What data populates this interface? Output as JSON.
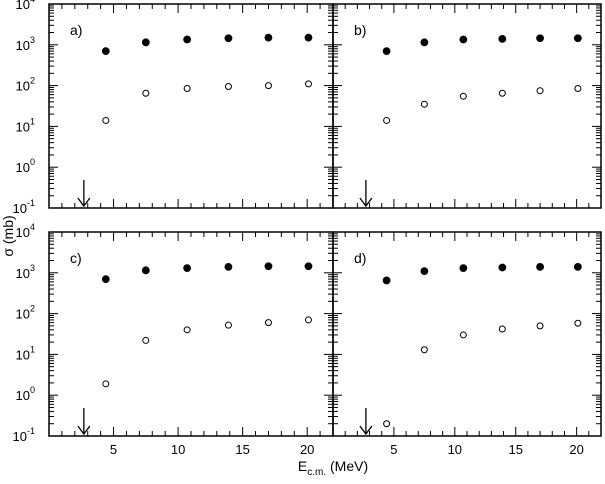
{
  "chart_data": [
    {
      "type": "scatter",
      "panel_label": "a)",
      "xlim": [
        0,
        22
      ],
      "ylim": [
        0.1,
        10000
      ],
      "yscale": "log",
      "arrow_x": 2.7,
      "series": [
        {
          "marker": "filled-circle",
          "x": [
            4.4,
            7.5,
            10.7,
            13.9,
            17.0,
            20.1
          ],
          "y": [
            700,
            1150,
            1350,
            1450,
            1500,
            1500
          ]
        },
        {
          "marker": "open-circle",
          "x": [
            4.4,
            7.5,
            10.7,
            13.9,
            17.0,
            20.1
          ],
          "y": [
            14,
            65,
            85,
            95,
            100,
            110
          ]
        }
      ]
    },
    {
      "type": "scatter",
      "panel_label": "b)",
      "xlim": [
        0,
        22
      ],
      "ylim": [
        0.1,
        10000
      ],
      "yscale": "log",
      "arrow_x": 2.7,
      "series": [
        {
          "marker": "filled-circle",
          "x": [
            4.4,
            7.5,
            10.7,
            13.9,
            17.0,
            20.1
          ],
          "y": [
            700,
            1150,
            1350,
            1400,
            1450,
            1450
          ]
        },
        {
          "marker": "open-circle",
          "x": [
            4.4,
            7.5,
            10.7,
            13.9,
            17.0,
            20.1
          ],
          "y": [
            14,
            35,
            55,
            65,
            75,
            85
          ]
        }
      ]
    },
    {
      "type": "scatter",
      "panel_label": "c)",
      "xlim": [
        0,
        22
      ],
      "ylim": [
        0.1,
        10000
      ],
      "yscale": "log",
      "arrow_x": 2.7,
      "series": [
        {
          "marker": "filled-circle",
          "x": [
            4.4,
            7.5,
            10.7,
            13.9,
            17.0,
            20.1
          ],
          "y": [
            700,
            1150,
            1300,
            1400,
            1450,
            1450
          ]
        },
        {
          "marker": "open-circle",
          "x": [
            4.4,
            7.5,
            10.7,
            13.9,
            17.0,
            20.1
          ],
          "y": [
            1.9,
            22,
            40,
            52,
            60,
            70
          ]
        }
      ]
    },
    {
      "type": "scatter",
      "panel_label": "d)",
      "xlim": [
        0,
        22
      ],
      "ylim": [
        0.1,
        10000
      ],
      "yscale": "log",
      "arrow_x": 2.7,
      "series": [
        {
          "marker": "filled-circle",
          "x": [
            4.4,
            7.5,
            10.7,
            13.9,
            17.0,
            20.1
          ],
          "y": [
            650,
            1100,
            1300,
            1350,
            1400,
            1400
          ]
        },
        {
          "marker": "open-circle",
          "x": [
            4.4,
            7.5,
            10.7,
            13.9,
            17.0,
            20.1
          ],
          "y": [
            0.2,
            13,
            30,
            42,
            50,
            58
          ]
        }
      ]
    }
  ],
  "axes": {
    "x_ticks": [
      5,
      10,
      15,
      20
    ],
    "y_ticks": [
      {
        "base": "10",
        "exp": "4"
      },
      {
        "base": "10",
        "exp": "3"
      },
      {
        "base": "10",
        "exp": "2"
      },
      {
        "base": "10",
        "exp": "1"
      },
      {
        "base": "10",
        "exp": "0"
      },
      {
        "base": "10",
        "exp": "-1"
      }
    ],
    "y_tick_values": [
      10000,
      1000,
      100,
      10,
      1,
      0.1
    ],
    "ylabel": "σ (mb)",
    "xlabel_main": "E",
    "xlabel_sub": "c.m.",
    "xlabel_unit": "(MeV)"
  },
  "colors": {
    "ink": "#000000",
    "background": "#ffffff"
  }
}
